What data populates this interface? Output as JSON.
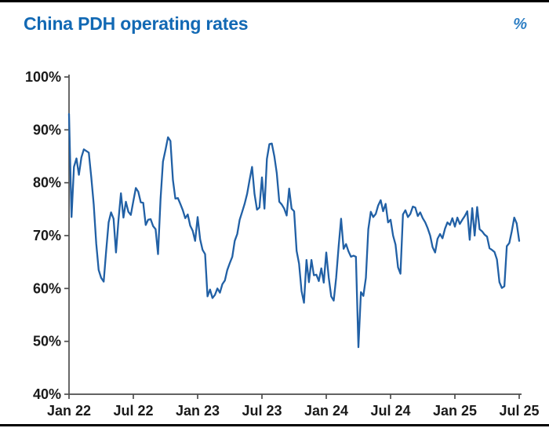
{
  "colors": {
    "title": "#1269b4",
    "unit": "#2e7fc4",
    "line": "#2160a5",
    "axis": "#4d4d4d",
    "tick_label": "#1a1a1a",
    "rule": "#000000",
    "background": "#ffffff"
  },
  "chart_data": {
    "type": "line",
    "title": "China PDH operating rates",
    "unit_label": "%",
    "x_tick_labels": [
      "Jan 22",
      "Jul 22",
      "Jan 23",
      "Jul 23",
      "Jan 24",
      "Jul 24",
      "Jan 25",
      "Jul 25"
    ],
    "y_ticks": [
      100,
      90,
      80,
      70,
      60,
      50,
      40
    ],
    "y_tick_labels": [
      "100%",
      "90%",
      "80%",
      "70%",
      "60%",
      "50%",
      "40%"
    ],
    "ylim": [
      40,
      100
    ],
    "x_range_months": 42,
    "grid": false,
    "legend": "none",
    "series": [
      {
        "name": "China PDH operating rate (weekly, %)",
        "x_start": "Jan 2022",
        "x_end": "Jul 2025",
        "values": [
          93.0,
          73.5,
          83.0,
          84.6,
          81.5,
          84.8,
          86.3,
          86.0,
          85.7,
          81.0,
          75.9,
          68.5,
          63.5,
          62.0,
          61.3,
          67.0,
          72.5,
          74.4,
          73.2,
          66.8,
          73.0,
          78.0,
          73.4,
          76.4,
          74.5,
          73.9,
          76.5,
          79.0,
          78.3,
          76.3,
          76.2,
          72.0,
          73.0,
          73.1,
          71.8,
          71.2,
          66.5,
          76.9,
          84.0,
          86.2,
          88.6,
          87.9,
          80.5,
          77.0,
          77.1,
          76.0,
          74.8,
          73.3,
          74.0,
          71.9,
          70.9,
          69.0,
          73.5,
          69.3,
          67.3,
          66.5,
          58.5,
          59.8,
          58.2,
          58.8,
          60.0,
          59.2,
          60.8,
          61.5,
          63.5,
          64.8,
          66.0,
          69.0,
          70.3,
          73.0,
          74.5,
          76.0,
          77.9,
          80.5,
          83.0,
          77.9,
          74.9,
          75.3,
          81.0,
          75.1,
          84.5,
          87.3,
          87.4,
          85.0,
          81.8,
          76.4,
          75.9,
          75.1,
          73.8,
          78.9,
          75.1,
          74.6,
          67.1,
          64.7,
          59.5,
          57.3,
          65.4,
          61.2,
          65.4,
          62.5,
          62.6,
          61.4,
          63.8,
          61.1,
          66.8,
          62.0,
          58.5,
          57.7,
          62.0,
          68.0,
          73.2,
          67.5,
          68.4,
          67.0,
          66.0,
          66.2,
          66.0,
          48.9,
          59.3,
          58.6,
          62.0,
          71.2,
          74.5,
          73.5,
          74.1,
          75.7,
          76.7,
          74.6,
          76.0,
          72.5,
          73.0,
          70.0,
          68.3,
          64.0,
          62.8,
          74.0,
          74.8,
          73.5,
          74.1,
          75.5,
          75.3,
          73.7,
          74.4,
          73.3,
          72.5,
          71.4,
          70.0,
          67.8,
          66.8,
          69.4,
          70.3,
          69.5,
          71.3,
          72.5,
          72.0,
          73.3,
          71.7,
          73.4,
          72.2,
          73.0,
          73.7,
          74.6,
          69.2,
          75.2,
          70.0,
          75.4,
          71.2,
          70.8,
          70.2,
          69.8,
          67.6,
          67.3,
          66.9,
          65.5,
          61.2,
          60.1,
          60.4,
          68.0,
          68.6,
          70.8,
          73.4,
          72.3,
          69.0
        ]
      }
    ]
  }
}
